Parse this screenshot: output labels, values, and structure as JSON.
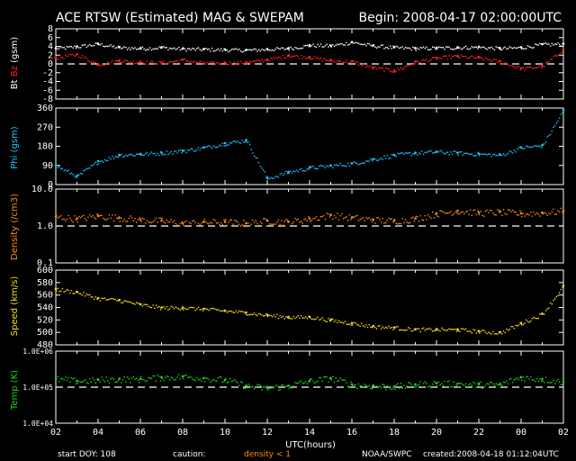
{
  "header": {
    "title": "ACE RTSW (Estimated) MAG & SWEPAM",
    "begin": "Begin: 2008-04-17 02:00:00UTC"
  },
  "footer": {
    "start_doy": "start DOY: 108",
    "caution": "caution:",
    "density_note": "density < 1",
    "source": "NOAA/SWPC",
    "created": "created:2008-04-18 01:12:04UTC"
  },
  "colors": {
    "bt": "#ffffff",
    "bz": "#ff2020",
    "phi": "#20c8ff",
    "density": "#ff8c1a",
    "speed": "#f0e020",
    "temp": "#20d020",
    "axes": "#ffffff",
    "caution": "#ff8c1a"
  },
  "x_axis": {
    "label": "UTC(hours)",
    "ticks": [
      "02",
      "04",
      "06",
      "08",
      "10",
      "12",
      "14",
      "16",
      "18",
      "20",
      "22",
      "00",
      "02"
    ]
  },
  "chart_data": [
    {
      "type": "scatter",
      "panel": "mag",
      "ylabel_parts": [
        "Bt",
        "Bz",
        "(gsm)"
      ],
      "ylim": [
        -8,
        8
      ],
      "yticks": [
        "8",
        "6",
        "4",
        "2",
        "0",
        "-2",
        "-4",
        "-6",
        "-8"
      ],
      "ytick_values": [
        8,
        6,
        4,
        2,
        0,
        -2,
        -4,
        -6,
        -8
      ],
      "reference_line": 0,
      "series": [
        {
          "name": "Bt",
          "color": "#ffffff",
          "x": [
            0,
            1,
            2,
            3,
            4,
            5,
            6,
            7,
            8,
            9,
            10,
            11,
            12,
            13,
            14,
            15,
            16,
            17,
            18,
            19,
            20,
            21,
            22,
            23,
            24
          ],
          "y": [
            3.6,
            4.0,
            4.6,
            3.8,
            3.6,
            3.8,
            3.5,
            3.4,
            3.3,
            3.2,
            3.4,
            3.6,
            4.3,
            4.2,
            5.0,
            4.2,
            3.8,
            3.6,
            3.7,
            3.8,
            3.9,
            3.6,
            3.8,
            4.5,
            4.6
          ]
        },
        {
          "name": "Bz",
          "color": "#ff2020",
          "x": [
            0,
            1,
            2,
            3,
            4,
            5,
            6,
            7,
            8,
            9,
            10,
            11,
            12,
            13,
            14,
            15,
            16,
            17,
            18,
            19,
            20,
            21,
            22,
            23,
            24
          ],
          "y": [
            1.5,
            2.2,
            0.0,
            0.8,
            0.5,
            0.3,
            1.0,
            0.2,
            0.3,
            0.4,
            1.0,
            2.0,
            1.6,
            0.8,
            0.6,
            -0.8,
            -1.5,
            0.5,
            1.4,
            1.8,
            1.5,
            0.6,
            -1.0,
            -0.5,
            3.5
          ]
        }
      ]
    },
    {
      "type": "scatter",
      "panel": "phi",
      "ylabel": "Phi (gsm)",
      "ylim": [
        0,
        360
      ],
      "yticks": [
        "360",
        "270",
        "180",
        "90",
        "0"
      ],
      "ytick_values": [
        360,
        270,
        180,
        90,
        0
      ],
      "series": [
        {
          "name": "Phi",
          "color": "#20c8ff",
          "x": [
            0,
            1,
            2,
            3,
            4,
            5,
            6,
            7,
            8,
            9,
            10,
            11,
            12,
            13,
            14,
            15,
            16,
            17,
            18,
            19,
            20,
            21,
            22,
            23,
            24
          ],
          "y": [
            90,
            40,
            110,
            140,
            145,
            150,
            160,
            175,
            195,
            210,
            30,
            60,
            80,
            90,
            100,
            120,
            140,
            150,
            155,
            150,
            145,
            140,
            175,
            185,
            350
          ]
        }
      ]
    },
    {
      "type": "scatter",
      "panel": "density",
      "ylabel": "Density (/cm3)",
      "yscale": "log",
      "ylim": [
        0.1,
        10.0
      ],
      "yticks": [
        "10.0",
        "1.0",
        "0.1"
      ],
      "ytick_values": [
        10.0,
        1.0,
        0.1
      ],
      "reference_line": 1.0,
      "series": [
        {
          "name": "Density",
          "color": "#ff8c1a",
          "x": [
            0,
            1,
            2,
            3,
            4,
            5,
            6,
            7,
            8,
            9,
            10,
            11,
            12,
            13,
            14,
            15,
            16,
            17,
            18,
            19,
            20,
            21,
            22,
            23,
            24
          ],
          "y": [
            1.8,
            1.6,
            1.9,
            1.7,
            1.5,
            1.4,
            1.2,
            1.3,
            1.3,
            1.2,
            1.4,
            1.3,
            1.6,
            2.0,
            1.7,
            1.5,
            1.4,
            1.6,
            2.2,
            2.6,
            2.3,
            2.4,
            2.2,
            2.3,
            2.6
          ]
        }
      ]
    },
    {
      "type": "scatter",
      "panel": "speed",
      "ylabel": "Speed (km/s)",
      "ylim": [
        480,
        600
      ],
      "yticks": [
        "600",
        "580",
        "560",
        "540",
        "520",
        "500",
        "480"
      ],
      "ytick_values": [
        600,
        580,
        560,
        540,
        520,
        500,
        480
      ],
      "series": [
        {
          "name": "Speed",
          "color": "#f0e020",
          "x": [
            0,
            1,
            2,
            3,
            4,
            5,
            6,
            7,
            8,
            9,
            10,
            11,
            12,
            13,
            14,
            15,
            16,
            17,
            18,
            19,
            20,
            21,
            22,
            23,
            24
          ],
          "y": [
            570,
            565,
            555,
            552,
            545,
            540,
            540,
            538,
            535,
            532,
            528,
            525,
            525,
            520,
            515,
            510,
            508,
            505,
            505,
            505,
            502,
            500,
            515,
            530,
            575
          ]
        }
      ]
    },
    {
      "type": "scatter",
      "panel": "temp",
      "ylabel": "Temp (K)",
      "yscale": "log",
      "ylim": [
        10000,
        1000000
      ],
      "yticks": [
        "1.0E+06",
        "1.0E+05",
        "1.0E+04"
      ],
      "ytick_values": [
        1000000,
        100000,
        10000
      ],
      "reference_line": 100000,
      "series": [
        {
          "name": "Temp",
          "color": "#20d020",
          "x": [
            0,
            1,
            2,
            3,
            4,
            5,
            6,
            7,
            8,
            9,
            10,
            11,
            12,
            13,
            14,
            15,
            16,
            17,
            18,
            19,
            20,
            21,
            22,
            23,
            24
          ],
          "y": [
            170000,
            150000,
            160000,
            170000,
            170000,
            190000,
            200000,
            180000,
            160000,
            110000,
            95000,
            110000,
            150000,
            180000,
            120000,
            110000,
            105000,
            120000,
            130000,
            125000,
            120000,
            120000,
            190000,
            170000,
            140000
          ]
        }
      ]
    }
  ]
}
